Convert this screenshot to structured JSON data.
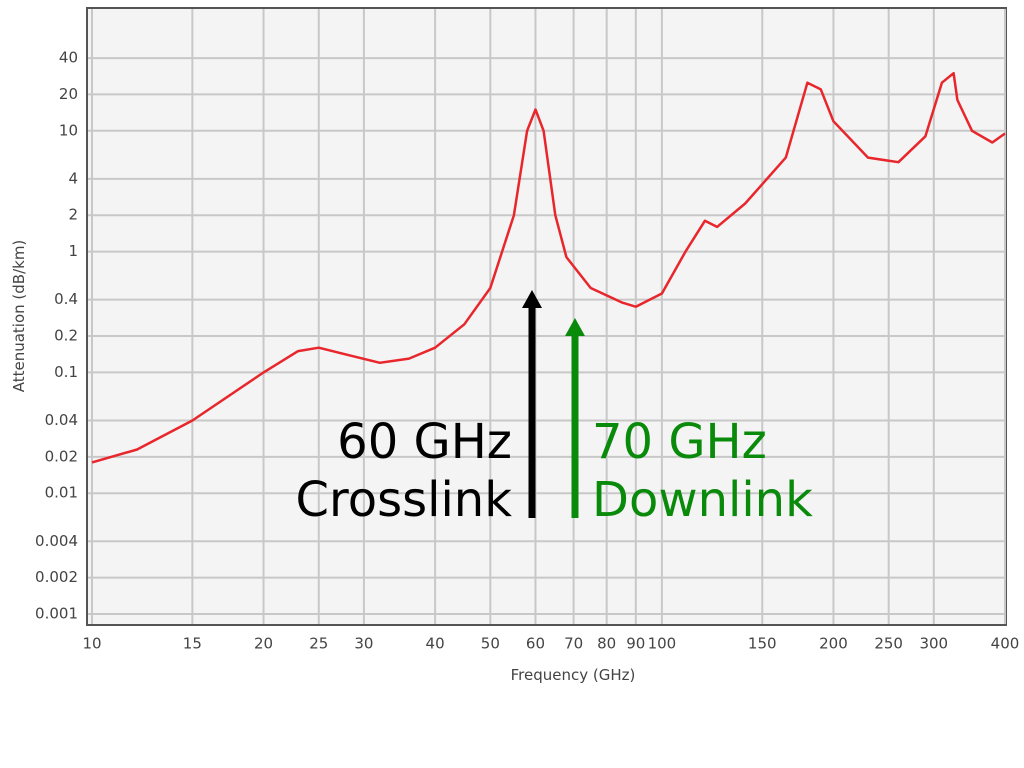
{
  "chart_data": {
    "type": "line",
    "xlabel": "Frequency (GHz)",
    "ylabel": "Attenuation (dB/km)",
    "xscale": "log",
    "yscale": "log",
    "grid": true,
    "xlim": [
      10,
      400
    ],
    "ylim": [
      0.001,
      100
    ],
    "xticks": [
      10,
      15,
      20,
      25,
      30,
      40,
      50,
      60,
      70,
      80,
      90,
      100,
      150,
      200,
      250,
      300,
      400
    ],
    "yticks": [
      0.001,
      0.002,
      0.004,
      0.01,
      0.02,
      0.04,
      0.1,
      0.2,
      0.4,
      1,
      2,
      4,
      10,
      20,
      40
    ],
    "x": [
      10,
      12,
      15,
      20,
      23,
      25,
      28,
      32,
      36,
      40,
      45,
      50,
      55,
      58,
      60,
      62,
      65,
      68,
      75,
      85,
      90,
      100,
      110,
      119,
      125,
      140,
      165,
      180,
      190,
      200,
      230,
      260,
      290,
      310,
      325,
      330,
      350,
      380,
      400
    ],
    "series": [
      {
        "color": "#e8262b",
        "values": [
          0.018,
          0.023,
          0.04,
          0.1,
          0.15,
          0.16,
          0.14,
          0.12,
          0.13,
          0.16,
          0.25,
          0.5,
          2,
          10,
          15,
          10,
          2,
          0.9,
          0.5,
          0.38,
          0.35,
          0.45,
          1,
          1.8,
          1.6,
          2.5,
          6,
          25,
          22,
          12,
          6,
          5.5,
          9,
          25,
          30,
          18,
          10,
          8,
          9.5
        ]
      }
    ],
    "annotations": [
      {
        "lines": [
          "60 GHz",
          "Crosslink"
        ],
        "color": "#000000"
      },
      {
        "lines": [
          "70 GHz",
          "Downlink"
        ],
        "color": "#0a8a0a"
      }
    ]
  }
}
